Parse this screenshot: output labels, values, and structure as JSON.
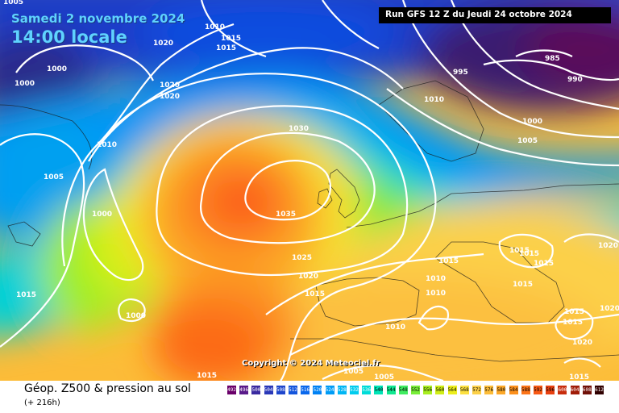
{
  "header": {
    "date": "Samedi 2 novembre 2024",
    "time": "14:00 locale",
    "run": "Run GFS 12 Z du Jeudi 24 octobre 2024"
  },
  "footer": {
    "title": "Géop. Z500 & pression au sol",
    "subtitle": "(+ 216h)",
    "copyright": "Copyright © 2024 Meteociel.fr"
  },
  "legend": {
    "values": [
      "492",
      "496",
      "500",
      "504",
      "508",
      "512",
      "516",
      "520",
      "524",
      "528",
      "532",
      "536",
      "540",
      "544",
      "548",
      "552",
      "556",
      "560",
      "564",
      "568",
      "572",
      "576",
      "580",
      "584",
      "588",
      "592",
      "596",
      "600",
      "604",
      "608",
      "612"
    ],
    "colors": [
      "#6a006a",
      "#5a1a8a",
      "#3a2aa0",
      "#2a38b8",
      "#1e46cc",
      "#1455dc",
      "#0a68ec",
      "#0082f4",
      "#009cf6",
      "#00b6f4",
      "#00ccee",
      "#00dcd8",
      "#00e4b6",
      "#10e890",
      "#40ec60",
      "#78ee38",
      "#a8ee20",
      "#d0ee18",
      "#ecee1c",
      "#fce040",
      "#fcd048",
      "#fcbc38",
      "#fca828",
      "#fc901c",
      "#fc7418",
      "#f85814",
      "#e84010",
      "#c82c0c",
      "#a01c08",
      "#701008",
      "#300000"
    ]
  },
  "isobar_labels": [
    "1005",
    "1010",
    "1015",
    "1015",
    "1020",
    "1000",
    "1000",
    "1020",
    "1020",
    "1030",
    "1010",
    "1005",
    "1000",
    "1035",
    "1025",
    "1020",
    "1015",
    "1000",
    "1015",
    "1015",
    "1010",
    "1010",
    "1010",
    "1005",
    "1005",
    "1015",
    "995",
    "985",
    "990",
    "1010",
    "1000",
    "1005",
    "1015",
    "1015",
    "1015",
    "1020",
    "1020",
    "1015",
    "1015",
    "1015",
    "1020",
    "1015"
  ]
}
